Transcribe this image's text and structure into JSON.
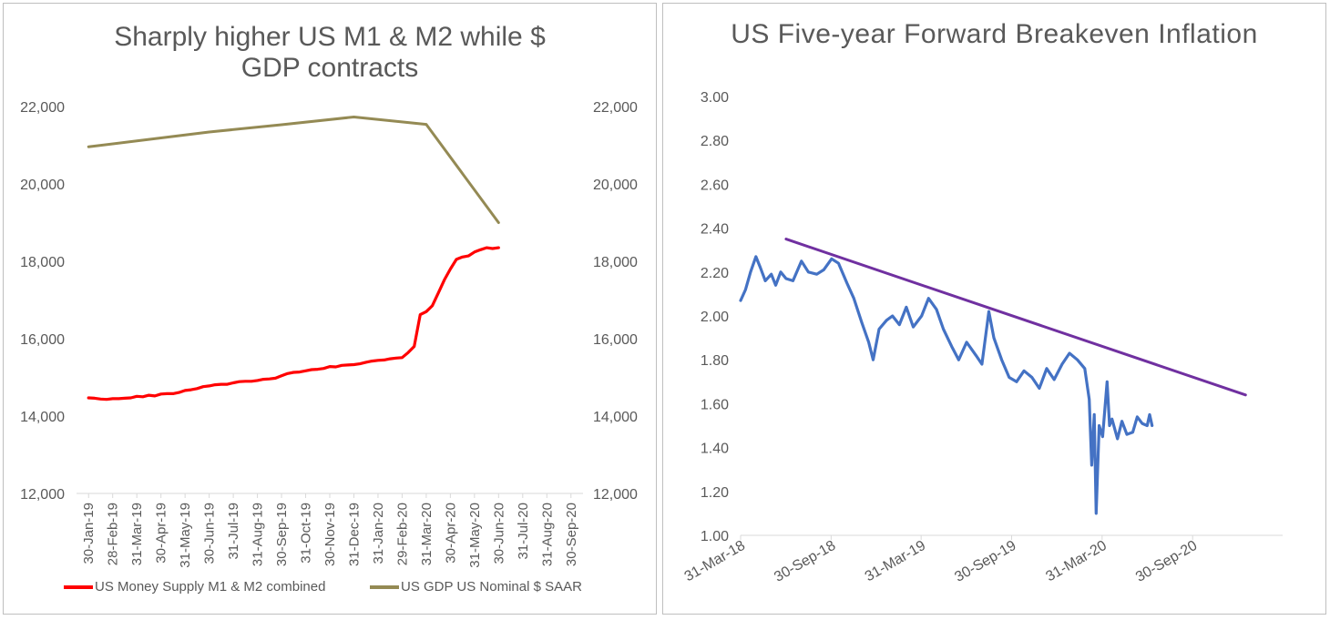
{
  "chart_data": [
    {
      "type": "line",
      "title": "Sharply higher US M1 & M2 while $ GDP contracts",
      "xlabel": "",
      "ylabel": "",
      "ylim": [
        12000,
        22000
      ],
      "y2lim": [
        12000,
        22000
      ],
      "yticks": [
        "12,000",
        "14,000",
        "16,000",
        "18,000",
        "20,000",
        "22,000"
      ],
      "y2ticks": [
        "12,000",
        "14,000",
        "16,000",
        "18,000",
        "20,000",
        "22,000"
      ],
      "categories": [
        "30-Jan-19",
        "28-Feb-19",
        "31-Mar-19",
        "30-Apr-19",
        "31-May-19",
        "30-Jun-19",
        "31-Jul-19",
        "31-Aug-19",
        "30-Sep-19",
        "31-Oct-19",
        "30-Nov-19",
        "31-Dec-19",
        "31-Jan-20",
        "29-Feb-20",
        "31-Mar-20",
        "30-Apr-20",
        "31-May-20",
        "30-Jun-20",
        "31-Jul-20",
        "31-Aug-20",
        "30-Sep-20"
      ],
      "grid": false,
      "legend": "bottom",
      "series": [
        {
          "name": "US Money Supply M1 & M2 combined",
          "color": "#ff0000",
          "axis": "left",
          "x": [
            0,
            0.25,
            0.5,
            0.75,
            1,
            1.25,
            1.5,
            1.75,
            2,
            2.25,
            2.5,
            2.75,
            3,
            3.25,
            3.5,
            3.75,
            4,
            4.25,
            4.5,
            4.75,
            5,
            5.25,
            5.5,
            5.75,
            6,
            6.25,
            6.5,
            6.75,
            7,
            7.25,
            7.5,
            7.75,
            8,
            8.25,
            8.5,
            8.75,
            9,
            9.25,
            9.5,
            9.75,
            10,
            10.25,
            10.5,
            10.75,
            11,
            11.25,
            11.5,
            11.75,
            12,
            12.25,
            12.5,
            12.75,
            13,
            13.25,
            13.5,
            13.75,
            14,
            14.25,
            14.5,
            14.75,
            15,
            15.25,
            15.5,
            15.75,
            16,
            16.25,
            16.5,
            16.75,
            17
          ],
          "values": [
            14470,
            14460,
            14440,
            14430,
            14450,
            14450,
            14460,
            14470,
            14510,
            14500,
            14540,
            14520,
            14570,
            14580,
            14580,
            14610,
            14660,
            14680,
            14710,
            14760,
            14780,
            14810,
            14820,
            14820,
            14860,
            14890,
            14900,
            14900,
            14920,
            14950,
            14960,
            14980,
            15040,
            15100,
            15130,
            15140,
            15170,
            15200,
            15210,
            15230,
            15280,
            15270,
            15310,
            15320,
            15330,
            15350,
            15390,
            15420,
            15440,
            15450,
            15480,
            15500,
            15510,
            15640,
            15800,
            16620,
            16700,
            16850,
            17180,
            17520,
            17800,
            18050,
            18110,
            18140,
            18240,
            18300,
            18350,
            18330,
            18350
          ]
        },
        {
          "name": "US GDP US Nominal $ SAAR",
          "color": "#948a54",
          "axis": "left",
          "x": [
            0,
            2,
            5,
            8,
            11,
            14,
            17
          ],
          "values": [
            20960,
            21110,
            21340,
            21530,
            21730,
            21540,
            19000
          ]
        }
      ]
    },
    {
      "type": "line",
      "title": "US Five-year Forward Breakeven Inflation",
      "xlabel": "",
      "ylabel": "",
      "ylim": [
        1.0,
        3.0
      ],
      "yticks": [
        "1.00",
        "1.20",
        "1.40",
        "1.60",
        "1.80",
        "2.00",
        "2.20",
        "2.40",
        "2.60",
        "2.80",
        "3.00"
      ],
      "xlim": [
        "31-Mar-18",
        "31-Mar-21"
      ],
      "xticks": [
        "31-Mar-18",
        "30-Sep-18",
        "31-Mar-19",
        "30-Sep-19",
        "31-Mar-20",
        "30-Sep-20"
      ],
      "grid": false,
      "legend": "none",
      "series": [
        {
          "color": "#4472c4",
          "x": [
            "2018-03-31",
            "2018-04-10",
            "2018-04-20",
            "2018-05-01",
            "2018-05-10",
            "2018-05-20",
            "2018-06-01",
            "2018-06-10",
            "2018-06-20",
            "2018-07-01",
            "2018-07-15",
            "2018-08-01",
            "2018-08-15",
            "2018-09-01",
            "2018-09-15",
            "2018-10-01",
            "2018-10-15",
            "2018-11-01",
            "2018-11-15",
            "2018-12-01",
            "2018-12-15",
            "2018-12-24",
            "2019-01-05",
            "2019-01-20",
            "2019-02-01",
            "2019-02-15",
            "2019-03-01",
            "2019-03-15",
            "2019-04-01",
            "2019-04-15",
            "2019-05-01",
            "2019-05-15",
            "2019-06-01",
            "2019-06-15",
            "2019-07-01",
            "2019-07-20",
            "2019-08-01",
            "2019-08-15",
            "2019-08-25",
            "2019-09-10",
            "2019-09-25",
            "2019-10-10",
            "2019-10-25",
            "2019-11-10",
            "2019-11-25",
            "2019-12-10",
            "2019-12-25",
            "2020-01-10",
            "2020-01-25",
            "2020-02-10",
            "2020-02-25",
            "2020-03-05",
            "2020-03-10",
            "2020-03-15",
            "2020-03-19",
            "2020-03-25",
            "2020-04-01",
            "2020-04-10",
            "2020-04-15",
            "2020-04-20",
            "2020-05-01",
            "2020-05-10",
            "2020-05-20",
            "2020-06-01",
            "2020-06-10",
            "2020-06-20",
            "2020-06-30",
            "2020-07-05",
            "2020-07-10"
          ],
          "values": [
            2.07,
            2.12,
            2.2,
            2.27,
            2.22,
            2.16,
            2.19,
            2.14,
            2.2,
            2.17,
            2.16,
            2.25,
            2.2,
            2.19,
            2.21,
            2.26,
            2.24,
            2.15,
            2.08,
            1.97,
            1.88,
            1.8,
            1.94,
            1.98,
            2.0,
            1.96,
            2.04,
            1.95,
            2.0,
            2.08,
            2.03,
            1.94,
            1.86,
            1.8,
            1.88,
            1.82,
            1.78,
            2.02,
            1.9,
            1.8,
            1.72,
            1.7,
            1.75,
            1.72,
            1.67,
            1.76,
            1.71,
            1.78,
            1.83,
            1.8,
            1.76,
            1.62,
            1.32,
            1.55,
            1.1,
            1.5,
            1.45,
            1.7,
            1.5,
            1.53,
            1.44,
            1.52,
            1.46,
            1.47,
            1.54,
            1.51,
            1.5,
            1.55,
            1.5
          ]
        },
        {
          "color": "#7030a0",
          "x": [
            "2018-07-01",
            "2021-01-15"
          ],
          "values": [
            2.35,
            1.64
          ]
        }
      ]
    }
  ]
}
